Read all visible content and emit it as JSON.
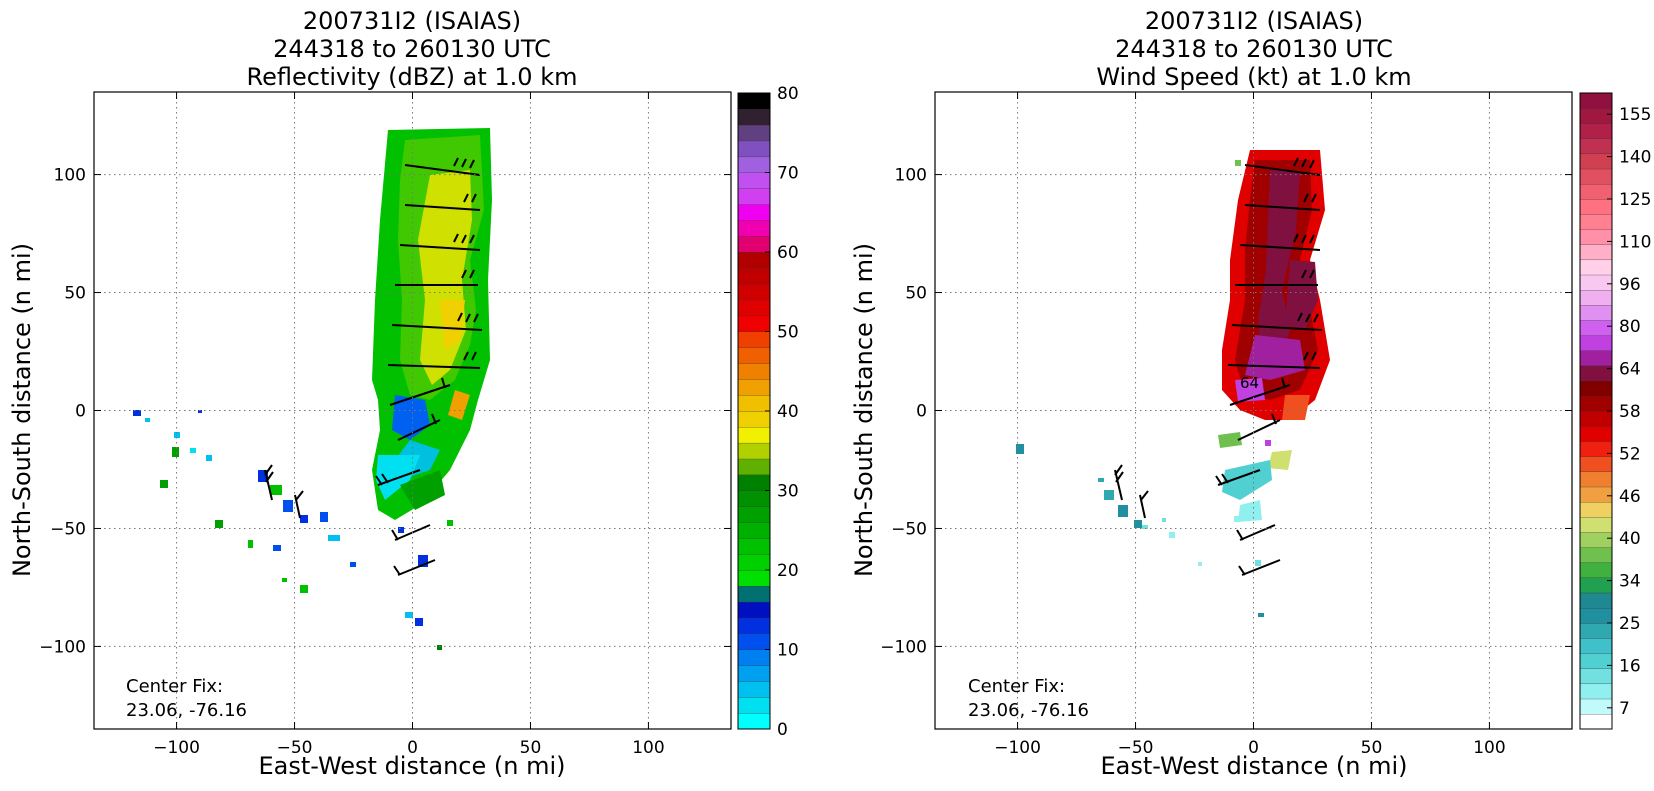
{
  "chart_data": [
    {
      "type": "heatmap",
      "title_lines": [
        "200731I2 (ISAIAS)",
        "244318 to 260130 UTC",
        "Reflectivity (dBZ) at 1.0 km"
      ],
      "xlabel": "East-West distance (n mi)",
      "ylabel": "North-South distance (n mi)",
      "xlim": [
        -135,
        135
      ],
      "ylim": [
        -135,
        135
      ],
      "xticks": [
        -100,
        -50,
        0,
        50,
        100
      ],
      "yticks": [
        -100,
        -50,
        0,
        50,
        100
      ],
      "grid": true,
      "annotation": [
        "Center Fix:",
        "23.06, -76.16"
      ],
      "colorbar": {
        "min": 0,
        "max": 80,
        "tick_values": [
          0,
          10,
          20,
          30,
          40,
          50,
          60,
          70,
          80
        ],
        "tick_labels": [
          "0",
          "10",
          "20",
          "30",
          "40",
          "50",
          "60",
          "70",
          "80"
        ],
        "colors": [
          "#00ffff",
          "#00e0f0",
          "#00c0f0",
          "#00a0f0",
          "#0080f0",
          "#0050f0",
          "#0030e0",
          "#0010c0",
          "#007070",
          "#00e000",
          "#00d000",
          "#00c000",
          "#00b000",
          "#00a000",
          "#009000",
          "#008000",
          "#60b000",
          "#b0d000",
          "#f0f000",
          "#f0d000",
          "#f0c000",
          "#f0a000",
          "#f08000",
          "#f06000",
          "#f04000",
          "#f00000",
          "#e00000",
          "#d00000",
          "#c00000",
          "#b00000",
          "#e00070",
          "#f000b0",
          "#f000f0",
          "#d040f0",
          "#c050f0",
          "#a060e0",
          "#8050c0",
          "#604080",
          "#302030",
          "#000000"
        ]
      },
      "data_description_only_visual": "radar reflectivity swath with wind barbs"
    },
    {
      "type": "heatmap",
      "title_lines": [
        "200731I2 (ISAIAS)",
        "244318 to 260130 UTC",
        "Wind Speed (kt) at 1.0 km"
      ],
      "xlabel": "East-West distance (n mi)",
      "ylabel": "North-South distance (n mi)",
      "xlim": [
        -135,
        135
      ],
      "ylim": [
        -135,
        135
      ],
      "xticks": [
        -100,
        -50,
        0,
        50,
        100
      ],
      "yticks": [
        -100,
        -50,
        0,
        50,
        100
      ],
      "grid": true,
      "annotation": [
        "Center Fix:",
        "23.06, -76.16"
      ],
      "contour_labels": [
        "64"
      ],
      "colorbar": {
        "tick_labels": [
          "7",
          "16",
          "25",
          "34",
          "40",
          "46",
          "52",
          "58",
          "64",
          "80",
          "96",
          "110",
          "125",
          "140",
          "155"
        ],
        "colors": [
          "#ffffff",
          "#c0fafa",
          "#90f0f0",
          "#70e0e0",
          "#50d0d0",
          "#40c0c8",
          "#30a8b0",
          "#2090a0",
          "#208890",
          "#20a050",
          "#40b040",
          "#70c050",
          "#a0d060",
          "#d0e070",
          "#f0d060",
          "#f0a040",
          "#f08030",
          "#f05020",
          "#f02010",
          "#e00000",
          "#c00000",
          "#a00000",
          "#800000",
          "#801040",
          "#a020a0",
          "#c040e0",
          "#d060f0",
          "#e090f0",
          "#f0b0f0",
          "#f8c8f0",
          "#ffd0e8",
          "#ffb0c8",
          "#ff90a8",
          "#ff8090",
          "#ff7080",
          "#f06070",
          "#e05060",
          "#d04050",
          "#c03050",
          "#b02048",
          "#a01840",
          "#901040"
        ]
      }
    }
  ]
}
